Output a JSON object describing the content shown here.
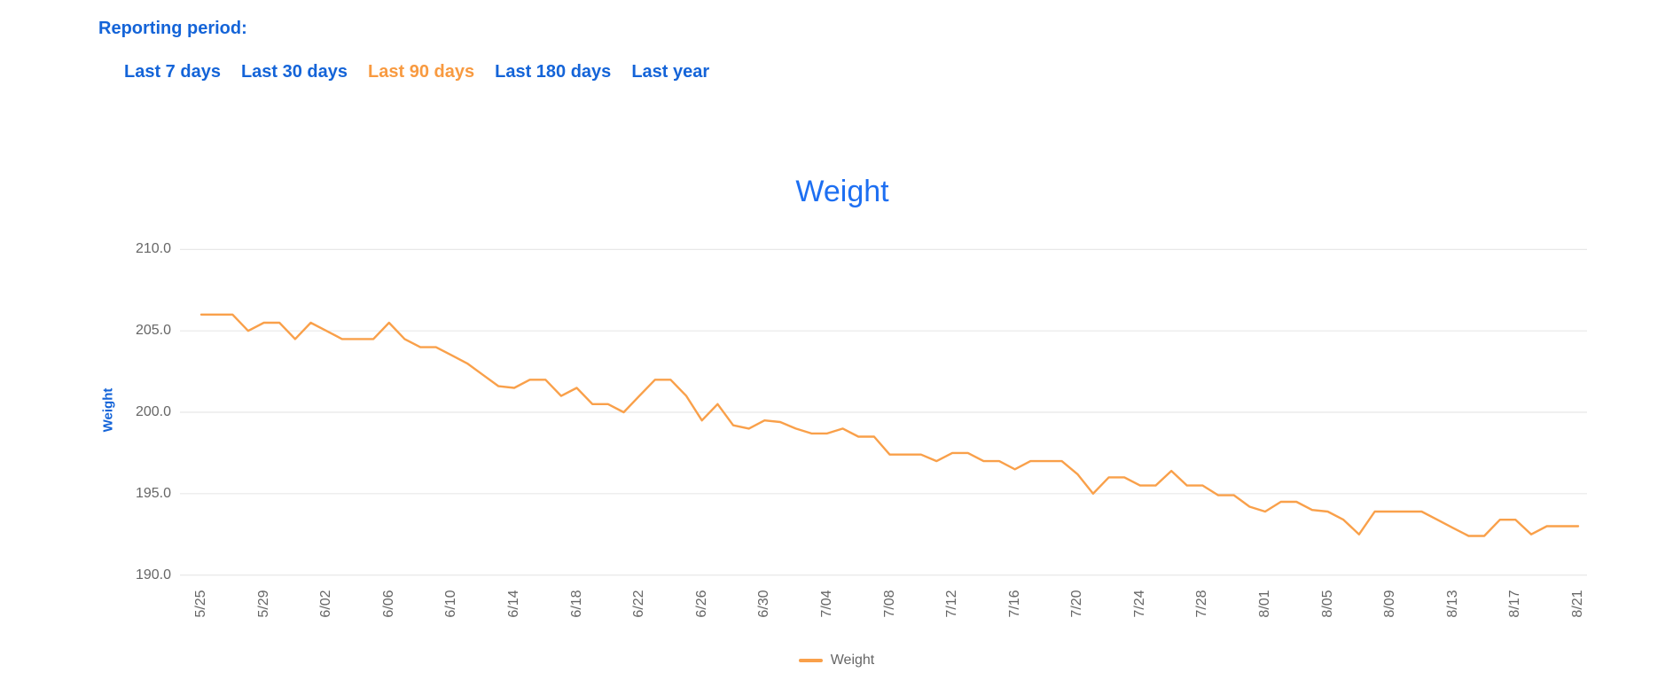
{
  "header": {
    "label": "Reporting period:"
  },
  "tabs": [
    {
      "label": "Last 7 days",
      "active": false
    },
    {
      "label": "Last 30 days",
      "active": false
    },
    {
      "label": "Last 90 days",
      "active": true
    },
    {
      "label": "Last 180 days",
      "active": false
    },
    {
      "label": "Last year",
      "active": false
    }
  ],
  "colors": {
    "link_blue": "#1464d8",
    "active_tab_orange": "#f89a40",
    "title_blue": "#1d6ff2",
    "series_orange": "#f9a04a",
    "tick_gray": "#666666",
    "grid_gray": "#e8e8e8"
  },
  "chart_data": {
    "type": "line",
    "title": "Weight",
    "ylabel": "Weight",
    "legend_position": "bottom",
    "legend": [
      {
        "label": "Weight",
        "color": "#f9a04a"
      }
    ],
    "ylim": [
      190,
      210
    ],
    "ytick_labels": [
      "210.0",
      "205.0",
      "200.0",
      "195.0",
      "190.0"
    ],
    "grid": "horizontal-only",
    "x_label_every": 4,
    "x": [
      "5/25",
      "5/26",
      "5/27",
      "5/28",
      "5/29",
      "5/30",
      "5/31",
      "6/01",
      "6/02",
      "6/03",
      "6/04",
      "6/05",
      "6/06",
      "6/07",
      "6/08",
      "6/09",
      "6/10",
      "6/11",
      "6/12",
      "6/13",
      "6/14",
      "6/15",
      "6/16",
      "6/17",
      "6/18",
      "6/19",
      "6/20",
      "6/21",
      "6/22",
      "6/23",
      "6/24",
      "6/25",
      "6/26",
      "6/27",
      "6/28",
      "6/29",
      "6/30",
      "7/01",
      "7/02",
      "7/03",
      "7/04",
      "7/05",
      "7/06",
      "7/07",
      "7/08",
      "7/09",
      "7/10",
      "7/11",
      "7/12",
      "7/13",
      "7/14",
      "7/15",
      "7/16",
      "7/17",
      "7/18",
      "7/19",
      "7/20",
      "7/21",
      "7/22",
      "7/23",
      "7/24",
      "7/25",
      "7/26",
      "7/27",
      "7/28",
      "7/29",
      "7/30",
      "7/31",
      "8/01",
      "8/02",
      "8/03",
      "8/04",
      "8/05",
      "8/06",
      "8/07",
      "8/08",
      "8/09",
      "8/10",
      "8/11",
      "8/12",
      "8/13",
      "8/14",
      "8/15",
      "8/16",
      "8/17",
      "8/18",
      "8/19",
      "8/20",
      "8/21"
    ],
    "series": [
      {
        "name": "Weight",
        "values": [
          206.0,
          206.0,
          206.0,
          205.0,
          205.5,
          205.5,
          204.5,
          205.5,
          205.0,
          204.5,
          204.5,
          204.5,
          205.5,
          204.5,
          204.0,
          204.0,
          203.5,
          203.0,
          202.3,
          201.6,
          201.5,
          202.0,
          202.0,
          201.0,
          201.5,
          200.5,
          200.5,
          200.0,
          201.0,
          202.0,
          202.0,
          201.0,
          199.5,
          200.5,
          199.2,
          199.0,
          199.5,
          199.4,
          199.0,
          198.7,
          198.7,
          199.0,
          198.5,
          198.5,
          197.4,
          197.4,
          197.4,
          197.0,
          197.5,
          197.5,
          197.0,
          197.0,
          196.5,
          197.0,
          197.0,
          197.0,
          196.2,
          195.0,
          196.0,
          196.0,
          195.5,
          195.5,
          196.4,
          195.5,
          195.5,
          194.9,
          194.9,
          194.2,
          193.9,
          194.5,
          194.5,
          194.0,
          193.9,
          193.4,
          192.5,
          193.9,
          193.9,
          193.9,
          193.9,
          193.4,
          192.9,
          192.4,
          192.4,
          193.4,
          193.4,
          192.5,
          193.0,
          193.0,
          193.0
        ]
      }
    ]
  }
}
